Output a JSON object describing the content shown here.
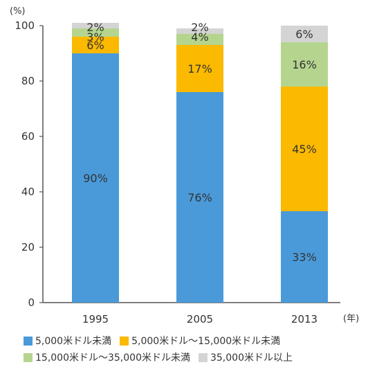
{
  "chart_data": {
    "type": "bar",
    "stacked": true,
    "categories": [
      "1995",
      "2005",
      "2013"
    ],
    "series": [
      {
        "name": "5,000米ドル未満",
        "values": [
          90,
          76,
          33
        ],
        "color": "#4a9ad9"
      },
      {
        "name": "5,000米ドル～15,000米ドル未満",
        "values": [
          6,
          17,
          45
        ],
        "color": "#fbb900"
      },
      {
        "name": "15,000米ドル～35,000米ドル未満",
        "values": [
          3,
          4,
          16
        ],
        "color": "#b5d58e"
      },
      {
        "name": "35,000米ドル以上",
        "values": [
          2,
          2,
          6
        ],
        "color": "#d4d4d4"
      }
    ],
    "data_labels": [
      [
        "90%",
        "76%",
        "33%"
      ],
      [
        "6%",
        "17%",
        "45%"
      ],
      [
        "3%",
        "4%",
        "16%"
      ],
      [
        "2%",
        "2%",
        "6%"
      ]
    ],
    "y_ticks": [
      "0",
      "20",
      "40",
      "60",
      "80",
      "100"
    ],
    "y_unit": "(%)",
    "x_unit": "(年)",
    "ylim": [
      0,
      100
    ],
    "grid": false,
    "legend_position": "bottom"
  }
}
